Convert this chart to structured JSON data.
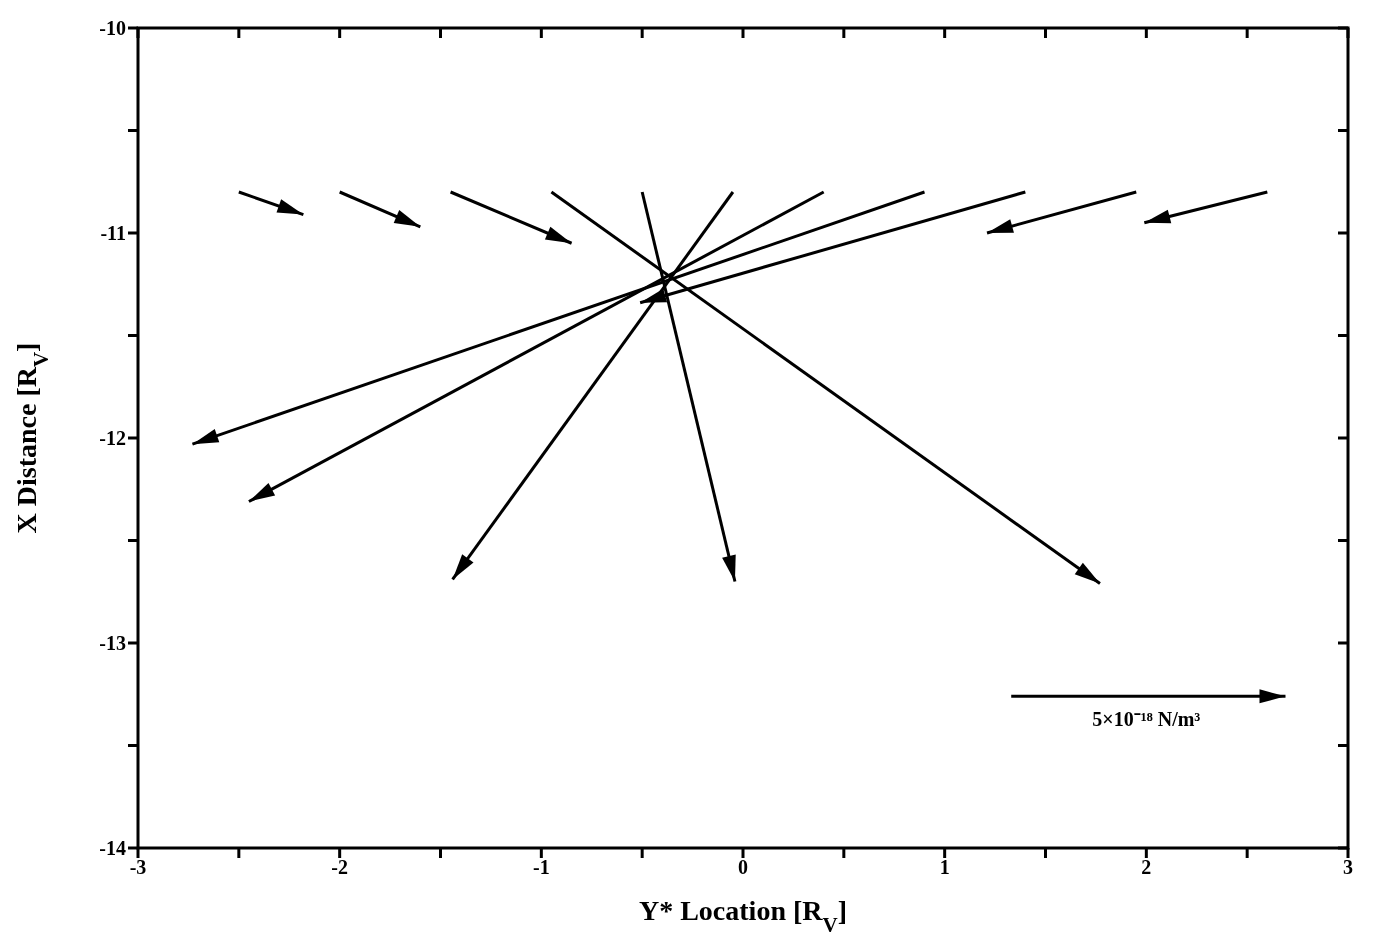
{
  "chart_data": {
    "type": "line",
    "xlabel": "Y* Location [R$_{V}$]",
    "ylabel": "X Distance [R$_{V}$]",
    "xlim": [
      -3,
      3
    ],
    "ylim": [
      -14,
      -10
    ],
    "xticks": [
      -3,
      {
        "value": -2.5,
        "label": null
      },
      -2,
      {
        "value": -1.5,
        "label": null
      },
      -1,
      {
        "value": -0.5,
        "label": null
      },
      0,
      {
        "value": 0.5,
        "label": null
      },
      1,
      {
        "value": 1.5,
        "label": null
      },
      2,
      {
        "value": 2.5,
        "label": null
      },
      3
    ],
    "yticks": [
      -14,
      {
        "value": -13.5,
        "label": null
      },
      -13,
      {
        "value": -12.5,
        "label": null
      },
      -12,
      {
        "value": -11.5,
        "label": null
      },
      -11,
      {
        "value": -10.5,
        "label": null
      },
      -10
    ],
    "grid": false,
    "line_style": "solid",
    "series": [
      {
        "color": "#000000",
        "x": [
          -2.5,
          -2.18
        ],
        "values": [
          -10.8,
          -10.91
        ]
      },
      {
        "color": "#000000",
        "x": [
          -2.0,
          -1.6
        ],
        "values": [
          -10.8,
          -10.97
        ]
      },
      {
        "color": "#000000",
        "x": [
          -1.45,
          -0.85
        ],
        "values": [
          -10.8,
          -11.05
        ]
      },
      {
        "color": "#000000",
        "x": [
          -0.95,
          1.77
        ],
        "values": [
          -10.8,
          -12.71
        ]
      },
      {
        "color": "#000000",
        "x": [
          -0.5,
          -0.04
        ],
        "values": [
          -10.8,
          -12.7
        ]
      },
      {
        "color": "#000000",
        "x": [
          -0.05,
          -1.44
        ],
        "values": [
          -10.8,
          -12.69
        ]
      },
      {
        "color": "#000000",
        "x": [
          0.4,
          -2.45
        ],
        "values": [
          -10.8,
          -12.31
        ]
      },
      {
        "color": "#000000",
        "x": [
          0.9,
          -2.73
        ],
        "values": [
          -10.8,
          -12.03
        ]
      },
      {
        "color": "#000000",
        "x": [
          1.4,
          -0.51
        ],
        "values": [
          -10.8,
          -11.34
        ]
      },
      {
        "color": "#000000",
        "x": [
          1.95,
          1.21
        ],
        "values": [
          -10.8,
          -11.0
        ]
      },
      {
        "color": "#000000",
        "x": [
          2.6,
          1.99
        ],
        "values": [
          -10.8,
          -10.95
        ]
      },
      {
        "color": "#000000",
        "x": [
          1.33,
          2.69
        ],
        "values": [
          -13.26,
          -13.26
        ]
      }
    ],
    "annotations": [
      {
        "text": "5×10⁻¹⁸ N/m³",
        "x": 2.0,
        "y": -13.26
      }
    ]
  }
}
